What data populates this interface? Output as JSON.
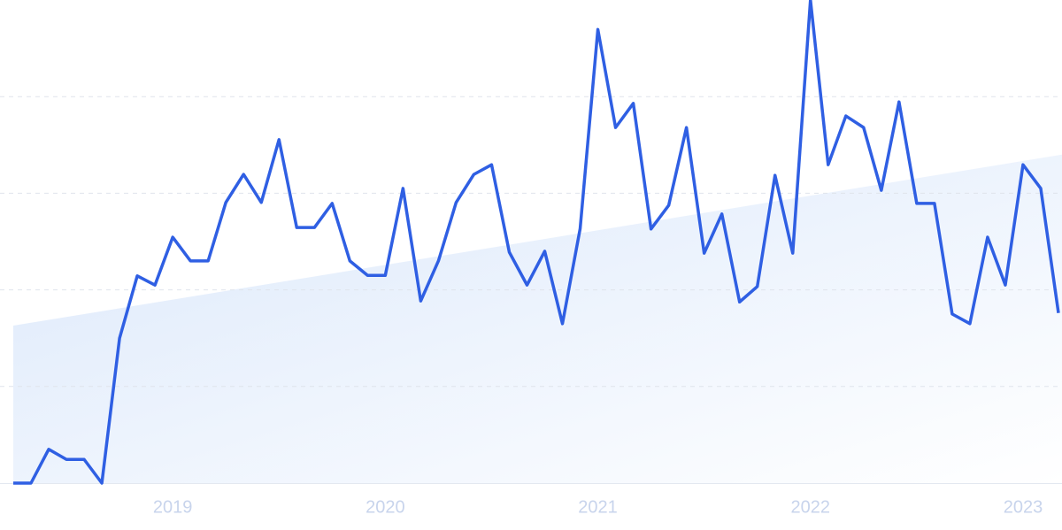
{
  "chart_data": {
    "type": "line",
    "categories": [
      null,
      null,
      null,
      null,
      null,
      null,
      null,
      null,
      null,
      "2019",
      null,
      null,
      null,
      null,
      null,
      null,
      null,
      null,
      null,
      null,
      null,
      "2020",
      null,
      null,
      null,
      null,
      null,
      null,
      null,
      null,
      null,
      null,
      null,
      "2021",
      null,
      null,
      null,
      null,
      null,
      null,
      null,
      null,
      null,
      null,
      null,
      "2022",
      null,
      null,
      null,
      null,
      null,
      null,
      null,
      null,
      null,
      null,
      null,
      "2023",
      null,
      null
    ],
    "values": [
      0,
      0,
      7,
      4.9,
      4.9,
      0,
      30,
      42.9,
      41,
      50.9,
      46,
      46,
      58.1,
      63.9,
      58.1,
      71.1,
      52.9,
      52.9,
      57.9,
      46,
      43,
      43,
      61,
      37.7,
      46,
      58.1,
      63.9,
      65.9,
      47.8,
      41,
      48,
      33,
      52.7,
      93.9,
      73.6,
      78.6,
      52.6,
      57.5,
      73.6,
      47.6,
      55.7,
      37.5,
      40.7,
      63.7,
      47.6,
      100,
      65.9,
      76,
      73.6,
      60.6,
      78.9,
      57.9,
      57.9,
      35,
      33,
      50.9,
      41,
      65.9,
      61,
      35.2
    ],
    "color": "#2f5fe3",
    "trend": [
      32.6,
      68
    ],
    "trend_color": "#dbe8fb",
    "ylim": [
      0,
      100
    ],
    "yticks": [
      20,
      40,
      60,
      80
    ],
    "grid": true,
    "show_y_tick_labels": false
  }
}
